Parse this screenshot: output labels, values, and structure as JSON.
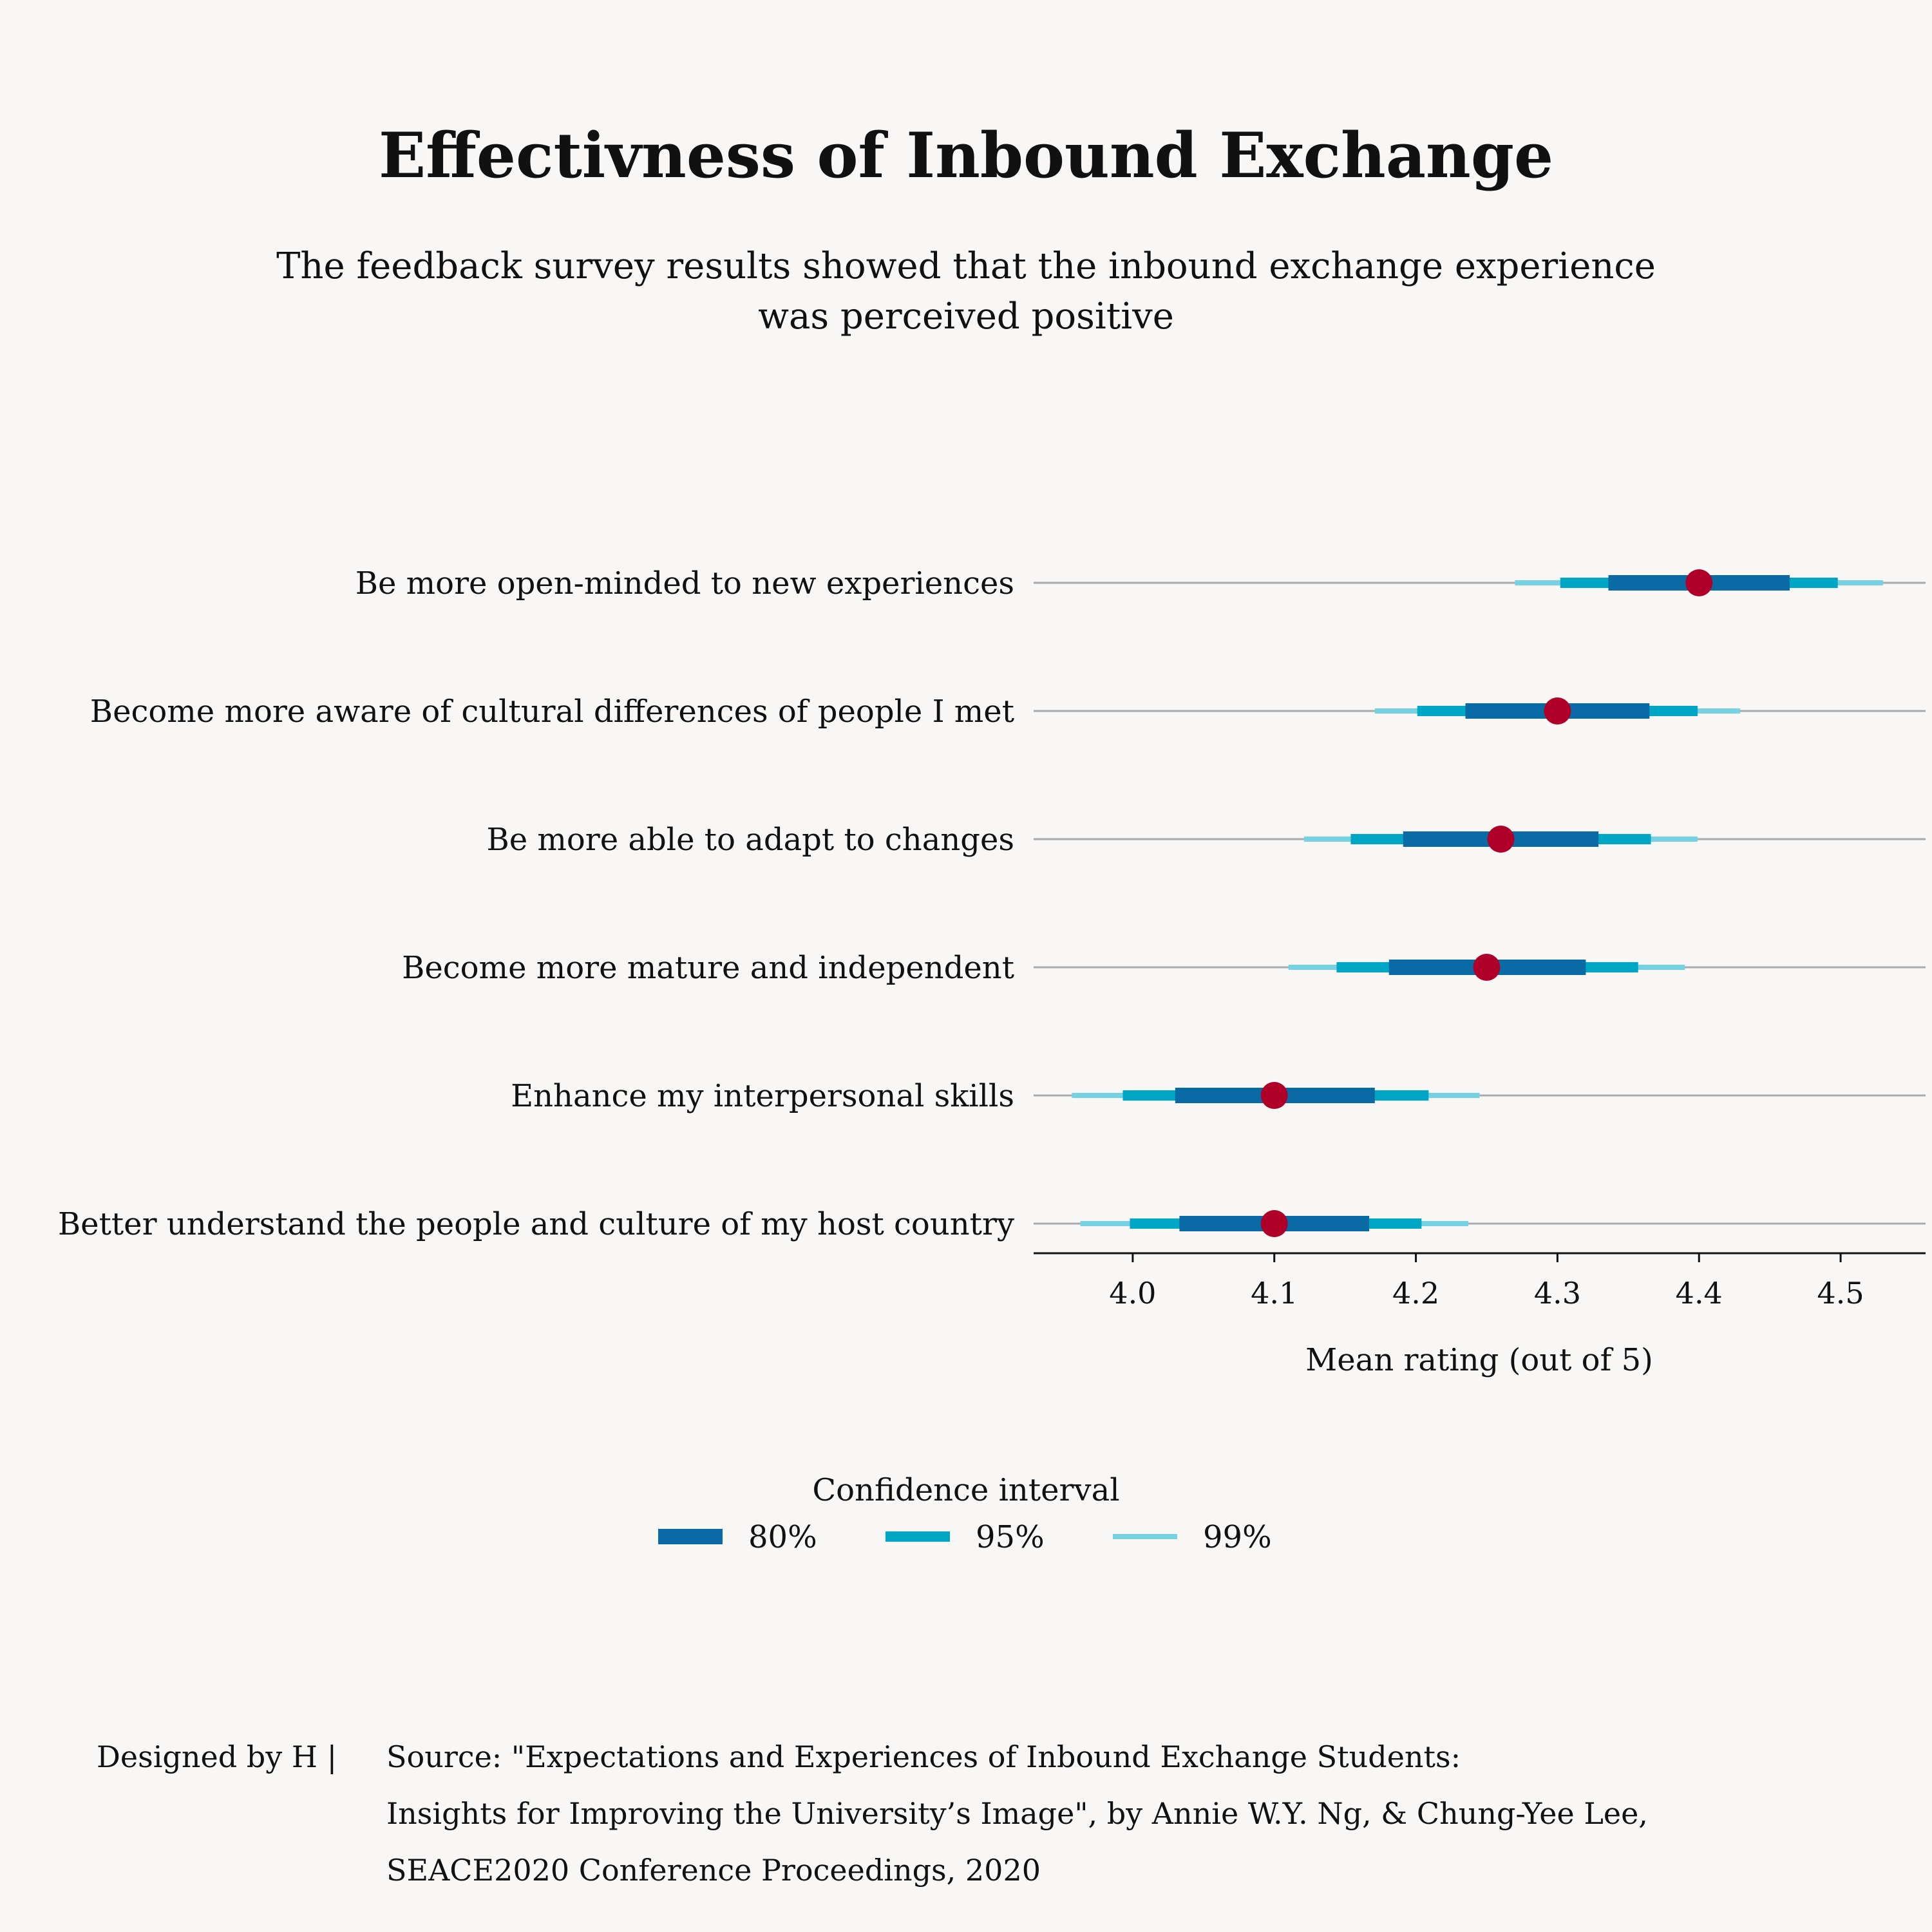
{
  "title": "Effectivness of Inbound Exchange",
  "subtitle": "The feedback survey results showed that the inbound exchange experience was perceived positive",
  "chart_data": {
    "type": "interval",
    "categories": [
      "Be more open-minded to new experiences",
      "Become more aware of cultural differences of people I met",
      "Be more able to adapt to changes",
      "Become more mature and independent",
      "Enhance my interpersonal skills",
      "Better understand the people and culture of my host country"
    ],
    "means": [
      4.4,
      4.3,
      4.26,
      4.25,
      4.1,
      4.1
    ],
    "intervals": {
      "80%": [
        [
          4.336,
          4.464
        ],
        [
          4.235,
          4.365
        ],
        [
          4.191,
          4.329
        ],
        [
          4.181,
          4.32
        ],
        [
          4.03,
          4.171
        ],
        [
          4.033,
          4.167
        ]
      ],
      "95%": [
        [
          4.302,
          4.498
        ],
        [
          4.201,
          4.399
        ],
        [
          4.154,
          4.366
        ],
        [
          4.144,
          4.357
        ],
        [
          3.993,
          4.209
        ],
        [
          3.998,
          4.204
        ]
      ],
      "99%": [
        [
          4.27,
          4.53
        ],
        [
          4.171,
          4.429
        ],
        [
          4.121,
          4.399
        ],
        [
          4.11,
          4.39
        ],
        [
          3.957,
          4.245
        ],
        [
          3.963,
          4.237
        ]
      ]
    },
    "xlabel": "Mean rating (out of 5)",
    "ylabel": "",
    "xlim": [
      3.93,
      4.56
    ],
    "xticks": [
      4.0,
      4.1,
      4.2,
      4.3,
      4.4,
      4.5
    ],
    "xtick_labels": [
      "4.0",
      "4.1",
      "4.2",
      "4.3",
      "4.4",
      "4.5"
    ],
    "grid": "horizontal per category",
    "legend": {
      "title": "Confidence interval",
      "placement": "bottom-center",
      "entries": [
        "80%",
        "95%",
        "99%"
      ]
    },
    "colors": {
      "80%": "#0a6aa6",
      "95%": "#00a6c6",
      "99%": "#76d2e2",
      "mean": "#b0002a",
      "grid": "#aaaaaa",
      "axis": "#111111"
    }
  },
  "footer": {
    "credit": "Designed by H |",
    "source_lines": [
      "Source: \"Expectations and Experiences of Inbound Exchange Students:",
      "Insights for Improving the University’s Image\", by Annie W.Y. Ng, & Chung-Yee Lee,",
      "SEACE2020 Conference Proceedings, 2020"
    ]
  }
}
